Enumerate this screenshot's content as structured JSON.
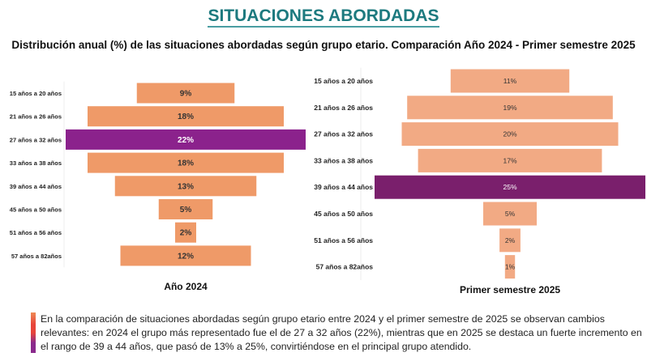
{
  "header": {
    "title": "SITUACIONES ABORDADAS",
    "subtitle": "Distribución anual (%) de las situaciones abordadas según grupo etario. Comparación Año 2024 -  Primer semestre 2025"
  },
  "colors": {
    "bar": "#ef9a68",
    "bar_2025": "#f2aa84",
    "highlight_2024": "#8b228c",
    "highlight_2025": "#7a1f6c",
    "title": "#1d7a7f"
  },
  "chart_data": [
    {
      "type": "bar",
      "orientation": "horizontal-centered (funnel)",
      "title": "Año 2024",
      "categories": [
        "15 años a 20 años",
        "21 años a 26 años",
        "27 años a 32 años",
        "33 años a 38 años",
        "39 años a 44 años",
        "45 años a 50 años",
        "51 años a 56 años",
        "57 años a 82años"
      ],
      "values": [
        9,
        18,
        22,
        18,
        13,
        5,
        2,
        12
      ],
      "labels": [
        "9%",
        "18%",
        "22%",
        "18%",
        "13%",
        "5%",
        "2%",
        "12%"
      ],
      "highlight": "27 años a 32 años"
    },
    {
      "type": "bar",
      "orientation": "horizontal-centered (funnel)",
      "title": "Primer semestre 2025",
      "categories": [
        "15 años a 20 años",
        "21 años a 26 años",
        "27 años a 32 años",
        "33 años a 38 años",
        "39 años a 44 años",
        "45 años a 50 años",
        "51 años a 56 años",
        "57 años a 82años"
      ],
      "values": [
        11,
        19,
        20,
        17,
        25,
        5,
        2,
        1
      ],
      "labels": [
        "11%",
        "19%",
        "20%",
        "17%",
        "25%",
        "5%",
        "2%",
        "1%"
      ],
      "highlight": "39 años a 44 años"
    }
  ],
  "note": "En la comparación de situaciones abordadas según grupo etario entre 2024 y el primer semestre de 2025 se observan cambios relevantes: en 2024 el grupo más representado fue el de 27 a 32 años (22%), mientras que en 2025 se destaca un fuerte incremento en el rango de 39 a 44 años, que pasó de 13% a 25%, convirtiéndose en el principal grupo atendido."
}
